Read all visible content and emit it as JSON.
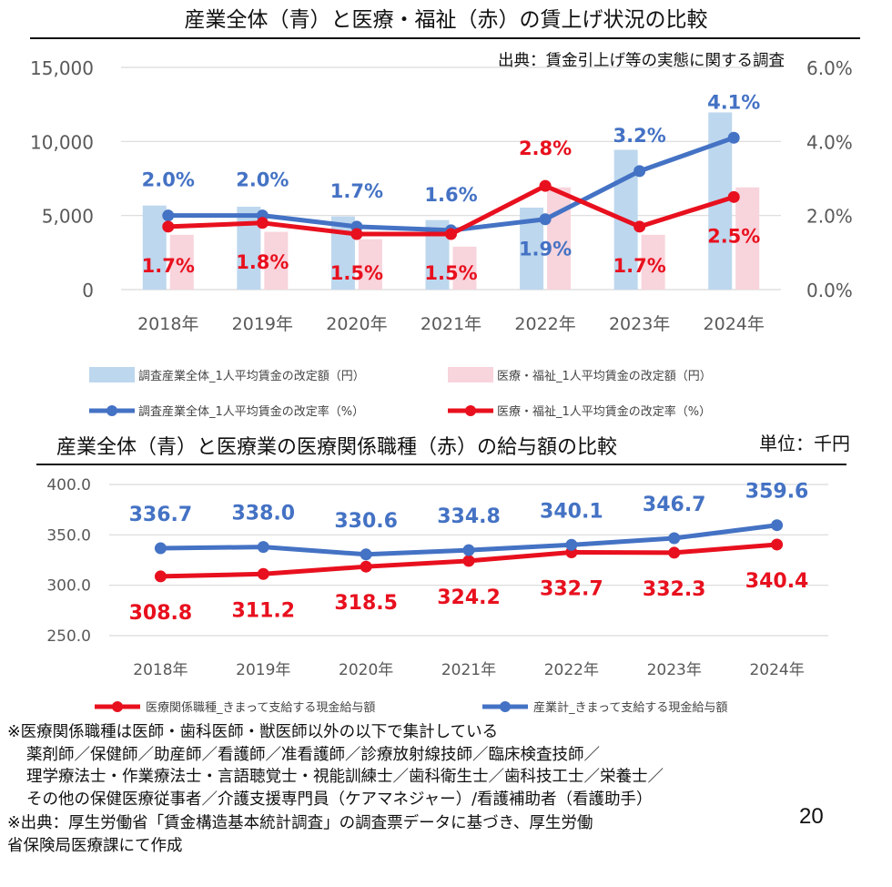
{
  "chart_data": [
    {
      "type": "bar",
      "title": "産業全体（青）と医療・福祉（赤）の賃上げ状況の比較",
      "source": "出典：賃金引上げ等の実態に関する調査",
      "categories": [
        "2018年",
        "2019年",
        "2020年",
        "2021年",
        "2022年",
        "2023年",
        "2024年"
      ],
      "y_left": {
        "ticks": [
          "15,000",
          "10,000",
          "5,000",
          "0"
        ],
        "ylim": [
          0,
          15000
        ]
      },
      "y_right": {
        "ticks": [
          "6.0%",
          "4.0%",
          "2.0%",
          "0.0%"
        ],
        "ylim": [
          0,
          6
        ]
      },
      "grid": true,
      "legend_position": "bottom",
      "series": [
        {
          "name": "調査産業全体_1人平均賃金の改定額（円）",
          "kind": "bar",
          "axis": "left",
          "color": "#bdd7ee",
          "values": [
            5675,
            5592,
            4940,
            4694,
            5534,
            9437,
            11961
          ]
        },
        {
          "name": "医療・福祉_1人平均賃金の改定額（円）",
          "kind": "bar",
          "axis": "left",
          "color": "#f8d4dc",
          "values": [
            3700,
            3900,
            3400,
            2900,
            6900,
            3700,
            6900
          ]
        },
        {
          "name": "調査産業全体_1人平均賃金の改定率（%）",
          "kind": "line",
          "axis": "right",
          "color": "#4472c4",
          "values": [
            2.0,
            2.0,
            1.7,
            1.6,
            1.9,
            3.2,
            4.1
          ],
          "labels": [
            "2.0%",
            "2.0%",
            "1.7%",
            "1.6%",
            "1.9%",
            "3.2%",
            "4.1%"
          ]
        },
        {
          "name": "医療・福祉_1人平均賃金の改定率（%）",
          "kind": "line",
          "axis": "right",
          "color": "#e8101e",
          "values": [
            1.7,
            1.8,
            1.5,
            1.5,
            2.8,
            1.7,
            2.5
          ],
          "labels": [
            "1.7%",
            "1.8%",
            "1.5%",
            "1.5%",
            "2.8%",
            "1.7%",
            "2.5%"
          ]
        }
      ]
    },
    {
      "type": "line",
      "title": "産業全体（青）と医療業の医療関係職種（赤）の給与額の比較",
      "unit": "単位：千円",
      "categories": [
        "2018年",
        "2019年",
        "2020年",
        "2021年",
        "2022年",
        "2023年",
        "2024年"
      ],
      "y": {
        "ticks": [
          "400.0",
          "350.0",
          "300.0",
          "250.0"
        ],
        "ylim": [
          250,
          400
        ]
      },
      "grid": true,
      "legend_position": "bottom",
      "series": [
        {
          "name": "医療関係職種_きまって支給する現金給与額",
          "color": "#e8101e",
          "values": [
            308.8,
            311.2,
            318.5,
            324.2,
            332.7,
            332.3,
            340.4
          ],
          "labels": [
            "308.8",
            "311.2",
            "318.5",
            "324.2",
            "332.7",
            "332.3",
            "340.4"
          ]
        },
        {
          "name": "産業計_きまって支給する現金給与額",
          "color": "#4472c4",
          "values": [
            336.7,
            338.0,
            330.6,
            334.8,
            340.1,
            346.7,
            359.6
          ],
          "labels": [
            "336.7",
            "338.0",
            "330.6",
            "334.8",
            "340.1",
            "346.7",
            "359.6"
          ]
        }
      ]
    }
  ],
  "notes": {
    "line1": "※医療関係職種は医師・歯科医師・獣医師以外の以下で集計している",
    "line2": "薬剤師／保健師／助産師／看護師／准看護師／診療放射線技師／臨床検査技師／",
    "line3": "理学療法士・作業療法士・言語聴覚士・視能訓練士／歯科衛生士／歯科技工士／栄養士／",
    "line4": "その他の保健医療従事者／介護支援専門員（ケアマネジャー）/看護補助者（看護助手）",
    "line5": "※出典：厚生労働省「賃金構造基本統計調査」の調査票データに基づき、厚生労働",
    "line6": "省保険局医療課にて作成"
  },
  "page_number": "20"
}
